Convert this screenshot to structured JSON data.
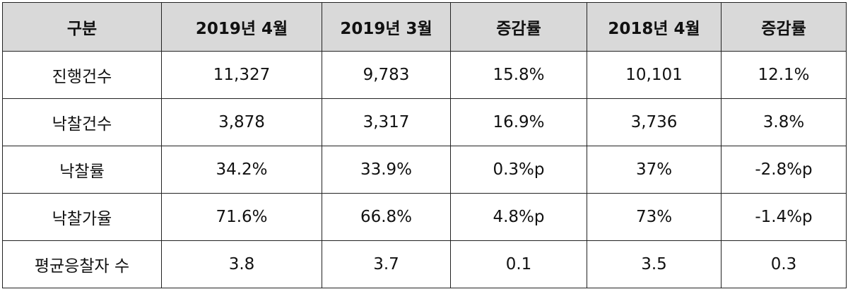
{
  "table": {
    "header": [
      "구분",
      "2019년 4월",
      "2019년 3월",
      "증감률",
      "2018년 4월",
      "증감률"
    ],
    "rows": [
      [
        "진행건수",
        "11,327",
        "9,783",
        "15.8%",
        "10,101",
        "12.1%"
      ],
      [
        "낙찰건수",
        "3,878",
        "3,317",
        "16.9%",
        "3,736",
        "3.8%"
      ],
      [
        "낙찰률",
        "34.2%",
        "33.9%",
        "0.3%p",
        "37%",
        "-2.8%p"
      ],
      [
        "낙찰가율",
        "71.6%",
        "66.8%",
        "4.8%p",
        "73%",
        "-1.4%p"
      ],
      [
        "평균응찰자 수",
        "3.8",
        "3.7",
        "0.1",
        "3.5",
        "0.3"
      ]
    ]
  }
}
